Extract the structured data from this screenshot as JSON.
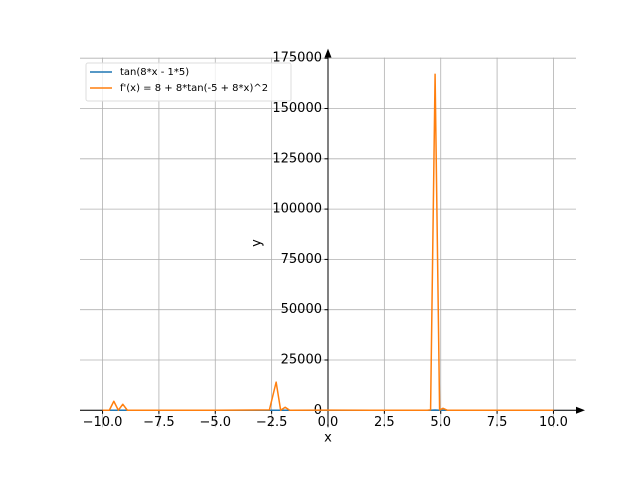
{
  "chart_data": {
    "type": "line",
    "x_label": "x",
    "y_label": "y",
    "x": [
      -10,
      -9.7,
      -9.5,
      -9.3,
      -9.1,
      -8.9,
      -8,
      -5,
      -2.6,
      -2.3,
      -2.1,
      -1.9,
      -1.7,
      0,
      2,
      4.4,
      4.55,
      4.75,
      4.95,
      5.1,
      5.3,
      7,
      10
    ],
    "series": [
      {
        "name": "tan(8*x - 1*5)",
        "color": "#1f77b4",
        "values": [
          2,
          -1,
          24,
          -3,
          19,
          1,
          0,
          -2,
          1,
          42,
          -2,
          13,
          0,
          3,
          -1,
          0,
          5,
          144,
          -4,
          11,
          0,
          1,
          -2
        ]
      },
      {
        "name": "f'(x) = 8 + 8*tan(-5 + 8*x)^2",
        "color": "#ff7f0e",
        "values": [
          50,
          30,
          4500,
          60,
          3000,
          20,
          10,
          30,
          200,
          14000,
          40,
          1500,
          20,
          80,
          10,
          50,
          200,
          167000,
          130,
          1000,
          15,
          40,
          35
        ]
      }
    ],
    "xlim": [
      -11,
      11
    ],
    "ylim": [
      -8400,
      175300
    ],
    "xticks": [
      {
        "value": -10,
        "label": "−10.0"
      },
      {
        "value": -7.5,
        "label": "−7.5"
      },
      {
        "value": -5,
        "label": "−5.0"
      },
      {
        "value": -2.5,
        "label": "−2.5"
      },
      {
        "value": 0,
        "label": "0.0"
      },
      {
        "value": 2.5,
        "label": "2.5"
      },
      {
        "value": 5,
        "label": "5.0"
      },
      {
        "value": 7.5,
        "label": "7.5"
      },
      {
        "value": 10,
        "label": "10.0"
      }
    ],
    "yticks": [
      0,
      25000,
      50000,
      75000,
      100000,
      125000,
      150000,
      175000
    ],
    "grid": true,
    "legend": "upper-left"
  }
}
